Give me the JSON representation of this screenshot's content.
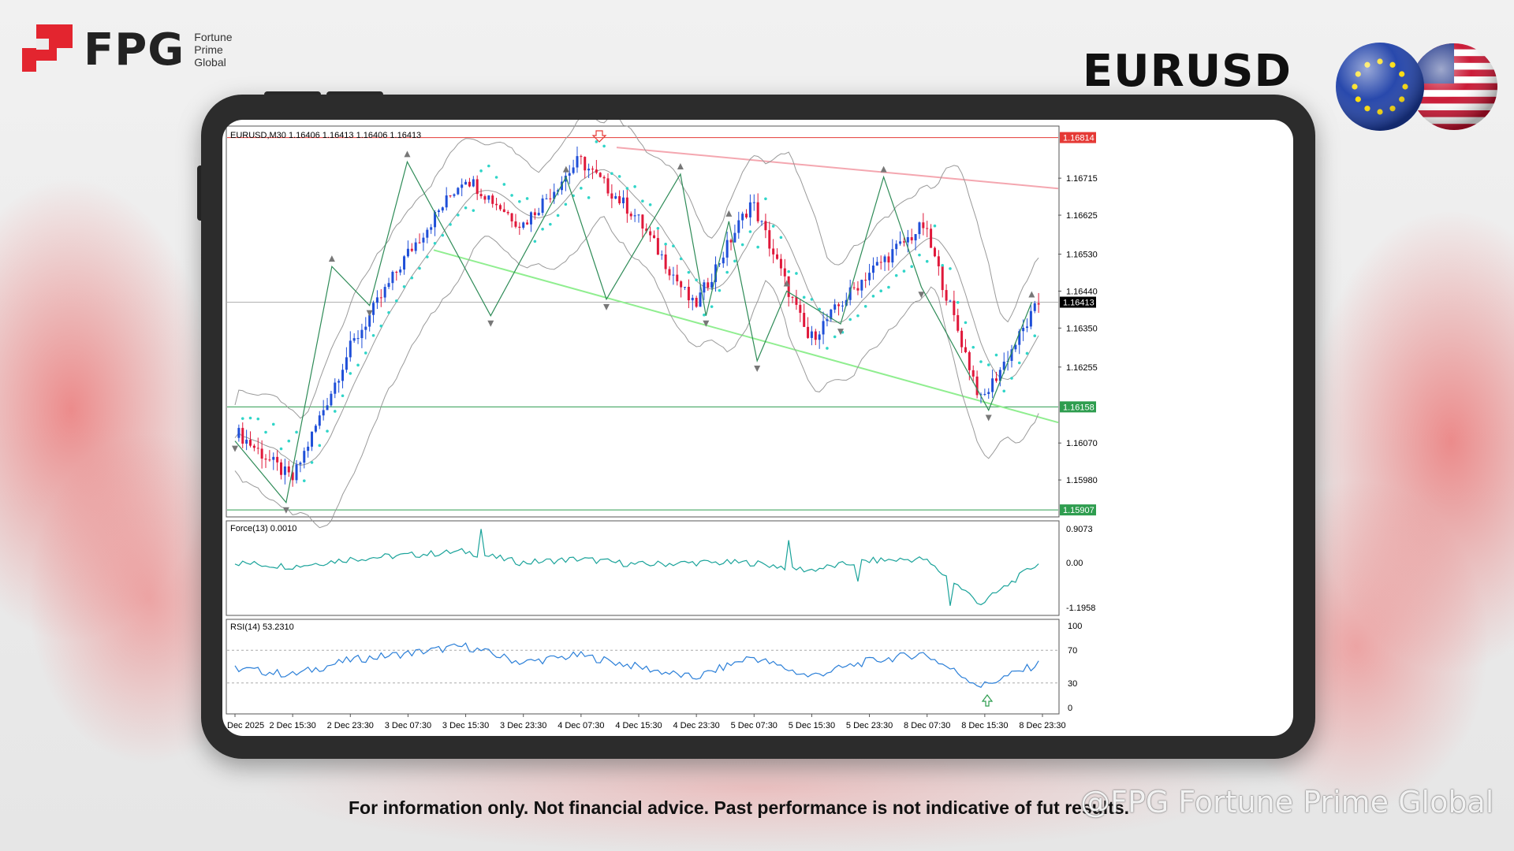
{
  "brand": {
    "name": "FPG",
    "sub_lines": [
      "Fortune",
      "Prime",
      "Global"
    ],
    "accent": "#e3252f"
  },
  "symbol_title": "EURUSD",
  "flags": [
    "eu-flag-icon",
    "us-flag-icon"
  ],
  "disclaimer": "For information only. Not financial advice. Past performance is not indicative of fut",
  "disclaimer_tail": "results.",
  "watermark": "@FPG Fortune Prime Global",
  "chart": {
    "header": "EURUSD,M30  1.16406 1.16413 1.16406 1.16413",
    "price_ticks": [
      "1.16715",
      "1.16625",
      "1.16530",
      "1.16440",
      "1.16350",
      "1.16255",
      "1.16070",
      "1.15980"
    ],
    "tag_top": "1.16814",
    "tag_current": "1.16413",
    "tag_support": "1.16158",
    "tag_bottom": "1.15907",
    "force_label": "Force(13) 0.0010",
    "force_ticks": [
      "0.9073",
      "0.00",
      "-1.1958"
    ],
    "rsi_label": "RSI(14) 53.2310",
    "rsi_ticks": [
      "100",
      "70",
      "30",
      "0"
    ],
    "time_labels": [
      "Dec 2025",
      "2 Dec 15:30",
      "2 Dec 23:30",
      "3 Dec 07:30",
      "3 Dec 15:30",
      "3 Dec 23:30",
      "4 Dec 07:30",
      "4 Dec 15:30",
      "4 Dec 23:30",
      "5 Dec 07:30",
      "5 Dec 15:30",
      "5 Dec 23:30",
      "8 Dec 07:30",
      "8 Dec 15:30",
      "8 Dec 23:30"
    ],
    "colors": {
      "bull": "#1f4fd8",
      "bear": "#e0183a",
      "psar": "#30d5c8",
      "zigzag": "#2e8b57",
      "band": "#9a9a9a",
      "resistance": "#f4a7b0",
      "support_trend": "#90ee90",
      "hline_red": "#e53935",
      "hline_green": "#2e9d4f",
      "force": "#1aa39a",
      "rsi": "#2b7fd8"
    }
  },
  "chart_data": {
    "type": "line",
    "title": "EURUSD,M30",
    "x": [
      "Dec 2025",
      "2 Dec 15:30",
      "2 Dec 23:30",
      "3 Dec 07:30",
      "3 Dec 15:30",
      "3 Dec 23:30",
      "4 Dec 07:30",
      "4 Dec 15:30",
      "4 Dec 23:30",
      "5 Dec 07:30",
      "5 Dec 15:30",
      "5 Dec 23:30",
      "8 Dec 07:30",
      "8 Dec 15:30",
      "8 Dec 23:30"
    ],
    "series": [
      {
        "name": "EURUSD,M30",
        "values": [
          1.161,
          1.1598,
          1.163,
          1.1653,
          1.1672,
          1.166,
          1.1676,
          1.1662,
          1.164,
          1.1666,
          1.1632,
          1.1648,
          1.166,
          1.1617,
          1.1641
        ]
      },
      {
        "name": "Force(13)",
        "values": [
          0.0,
          -0.1,
          0.1,
          0.2,
          0.3,
          0.0,
          0.1,
          -0.05,
          0.0,
          0.0,
          -0.2,
          0.05,
          0.1,
          -1.1,
          0.001
        ]
      },
      {
        "name": "RSI(14)",
        "values": [
          48,
          40,
          58,
          66,
          75,
          55,
          64,
          50,
          36,
          62,
          38,
          56,
          66,
          26,
          53.231
        ]
      }
    ],
    "ylim": [
      1.1589,
      1.16814
    ],
    "force_ylim": [
      -1.1958,
      0.9073
    ],
    "rsi_ylim": [
      0,
      100
    ],
    "levels": {
      "resistance": 1.16814,
      "current": 1.16413,
      "support": 1.16158,
      "low": 1.15907
    }
  }
}
